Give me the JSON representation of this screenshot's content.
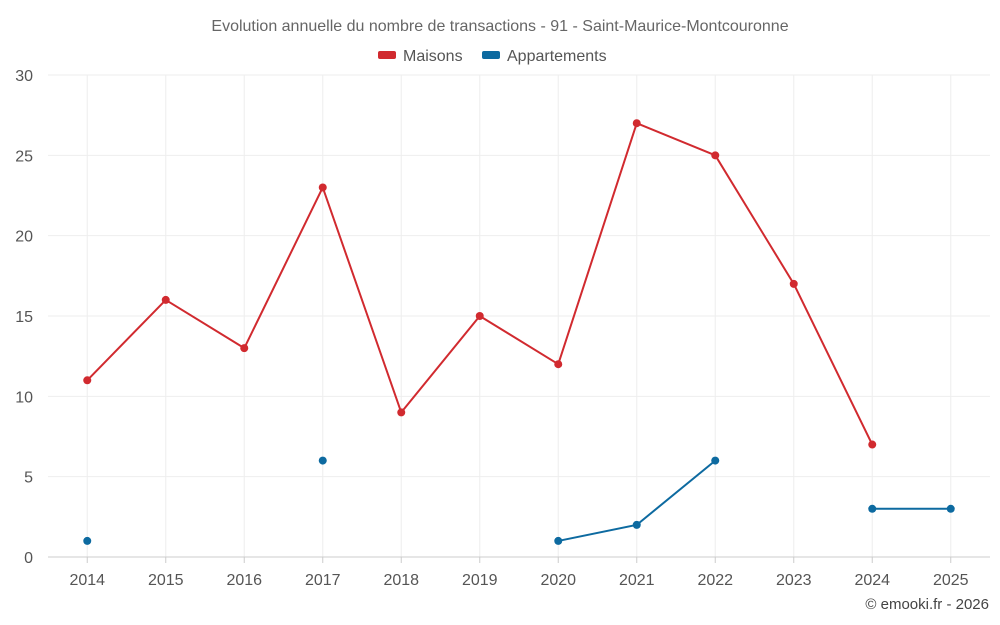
{
  "chart_data": {
    "type": "line",
    "title": "Evolution annuelle du nombre de transactions - 91 - Saint-Maurice-Montcouronne",
    "categories": [
      "2014",
      "2015",
      "2016",
      "2017",
      "2018",
      "2019",
      "2020",
      "2021",
      "2022",
      "2023",
      "2024",
      "2025"
    ],
    "series": [
      {
        "name": "Maisons",
        "color": "#d12a2f",
        "values": [
          11,
          16,
          13,
          23,
          9,
          15,
          12,
          27,
          25,
          17,
          7,
          null
        ]
      },
      {
        "name": "Appartements",
        "color": "#0d6aa0",
        "values": [
          1,
          null,
          null,
          6,
          null,
          null,
          1,
          2,
          6,
          null,
          3,
          3
        ]
      }
    ],
    "ylim": [
      0,
      30
    ],
    "yticks": [
      "0",
      "5",
      "10",
      "15",
      "20",
      "25",
      "30"
    ],
    "xlabel": "",
    "ylabel": "",
    "grid": true,
    "legend": "top-center"
  },
  "credit": "© emooki.fr - 2026"
}
